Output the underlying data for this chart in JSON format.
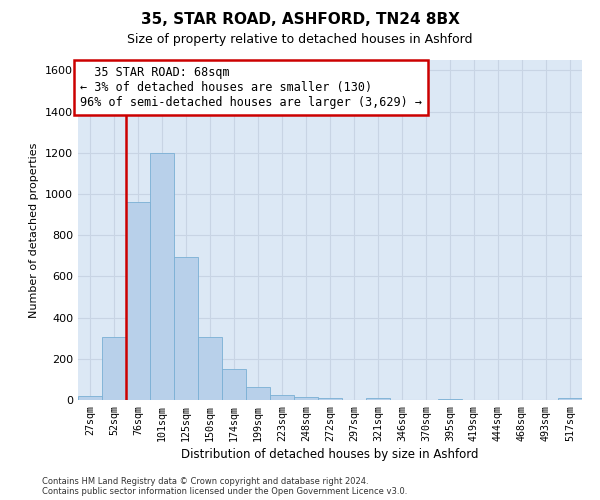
{
  "title_line1": "35, STAR ROAD, ASHFORD, TN24 8BX",
  "title_line2": "Size of property relative to detached houses in Ashford",
  "xlabel": "Distribution of detached houses by size in Ashford",
  "ylabel": "Number of detached properties",
  "footnote1": "Contains HM Land Registry data © Crown copyright and database right 2024.",
  "footnote2": "Contains public sector information licensed under the Open Government Licence v3.0.",
  "bar_labels": [
    "27sqm",
    "52sqm",
    "76sqm",
    "101sqm",
    "125sqm",
    "150sqm",
    "174sqm",
    "199sqm",
    "223sqm",
    "248sqm",
    "272sqm",
    "297sqm",
    "321sqm",
    "346sqm",
    "370sqm",
    "395sqm",
    "419sqm",
    "444sqm",
    "468sqm",
    "493sqm",
    "517sqm"
  ],
  "bar_values": [
    20,
    305,
    960,
    1200,
    695,
    305,
    150,
    65,
    25,
    15,
    12,
    0,
    8,
    0,
    0,
    5,
    0,
    0,
    0,
    0,
    8
  ],
  "bar_color": "#b8d0ea",
  "bar_edge_color": "#7aafd4",
  "grid_color": "#c8d4e4",
  "background_color": "#dce8f5",
  "vline_color": "#cc0000",
  "vline_x_index": 1.5,
  "annotation_text": "  35 STAR ROAD: 68sqm\n← 3% of detached houses are smaller (130)\n96% of semi-detached houses are larger (3,629) →",
  "annotation_box_facecolor": "#ffffff",
  "annotation_box_edgecolor": "#cc0000",
  "ylim": [
    0,
    1650
  ],
  "yticks": [
    0,
    200,
    400,
    600,
    800,
    1000,
    1200,
    1400,
    1600
  ],
  "title1_fontsize": 11,
  "title2_fontsize": 9,
  "ann_fontsize": 8.5
}
